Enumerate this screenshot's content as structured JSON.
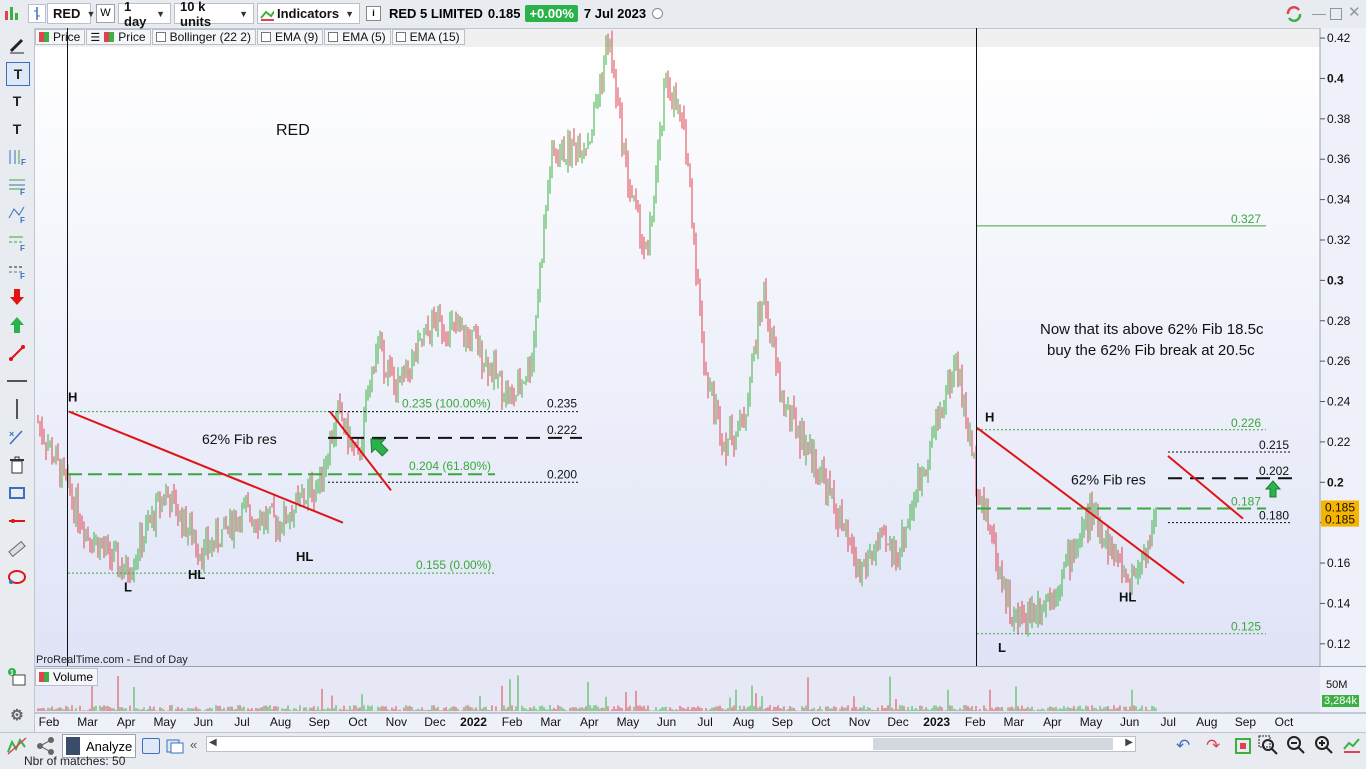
{
  "toolbar": {
    "ticker": "RED",
    "timeframe": "1 day",
    "units": "10 k units",
    "indicators_label": "Indicators",
    "instrument_name": "RED 5 LIMITED",
    "last_price": "0.185",
    "change": "+0.00%",
    "date": "7 Jul 2023"
  },
  "legend": {
    "items": [
      "Price",
      "Price",
      "Bollinger (22 2)",
      "EMA (9)",
      "EMA (5)",
      "EMA (15)"
    ]
  },
  "volume_panel": {
    "label": "Volume",
    "scale_top": "50M",
    "scale_value": "3,284k"
  },
  "status": {
    "analyze_label": "Analyze",
    "matches_text": "Nbr of matches: 50"
  },
  "colors": {
    "up": "#3cb043",
    "down": "#e0434f",
    "trendline": "#e01414",
    "fib": "#3aa83a",
    "accent": "#2bb34b"
  },
  "chart_data": {
    "type": "candlestick",
    "watermark": "ProRealTime.com - End of Day",
    "title": "RED",
    "y_axis": {
      "min": 0.11,
      "max": 0.424,
      "ticks": [
        "0.42",
        "0.4",
        "0.38",
        "0.36",
        "0.34",
        "0.32",
        "0.3",
        "0.28",
        "0.26",
        "0.24",
        "0.22",
        "0.2",
        "0.18",
        "0.16",
        "0.14",
        "0.12"
      ],
      "price_badges": [
        "0.185",
        "0.185"
      ]
    },
    "x_axis": {
      "labels": [
        "Feb",
        "Mar",
        "Apr",
        "May",
        "Jun",
        "Jul",
        "Aug",
        "Sep",
        "Oct",
        "Nov",
        "Dec",
        "2022",
        "Feb",
        "Mar",
        "Apr",
        "May",
        "Jun",
        "Jul",
        "Aug",
        "Sep",
        "Oct",
        "Nov",
        "Dec",
        "2023",
        "Feb",
        "Mar",
        "Apr",
        "May",
        "Jun",
        "Jul",
        "Aug",
        "Sep",
        "Oct"
      ],
      "bold_labels": [
        "2022",
        "2023"
      ]
    },
    "price_path": [
      [
        "Feb 2021",
        0.23
      ],
      [
        "Mar 2021",
        0.175
      ],
      [
        "Apr 2021",
        0.155
      ],
      [
        "May 2021",
        0.195
      ],
      [
        "Jun 2021",
        0.165
      ],
      [
        "Jul 2021",
        0.185
      ],
      [
        "Aug 2021",
        0.18
      ],
      [
        "Sep 2021",
        0.2
      ],
      [
        "Sep 2021",
        0.235
      ],
      [
        "Oct 2021",
        0.21
      ],
      [
        "Oct 2021",
        0.27
      ],
      [
        "Nov 2021",
        0.245
      ],
      [
        "Dec 2021",
        0.28
      ],
      [
        "Jan 2022",
        0.27
      ],
      [
        "Feb 2022",
        0.24
      ],
      [
        "Feb 2022",
        0.26
      ],
      [
        "Mar 2022",
        0.36
      ],
      [
        "Apr 2022",
        0.37
      ],
      [
        "Apr 2022",
        0.42
      ],
      [
        "May 2022",
        0.35
      ],
      [
        "May 2022",
        0.31
      ],
      [
        "Jun 2022",
        0.4
      ],
      [
        "Jun 2022",
        0.37
      ],
      [
        "Jul 2022",
        0.255
      ],
      [
        "Jul 2022",
        0.22
      ],
      [
        "Aug 2022",
        0.23
      ],
      [
        "Aug 2022",
        0.295
      ],
      [
        "Sep 2022",
        0.24
      ],
      [
        "Oct 2022",
        0.205
      ],
      [
        "Nov 2022",
        0.155
      ],
      [
        "Nov 2022",
        0.17
      ],
      [
        "Dec 2022",
        0.165
      ],
      [
        "Jan 2023",
        0.23
      ],
      [
        "Jan 2023",
        0.26
      ],
      [
        "Feb 2023",
        0.205
      ],
      [
        "Mar 2023",
        0.13
      ],
      [
        "Apr 2023",
        0.145
      ],
      [
        "May 2023",
        0.185
      ],
      [
        "Jun 2023",
        0.15
      ],
      [
        "Jun 2023",
        0.17
      ],
      [
        "Jul 2023",
        0.185
      ]
    ],
    "annotations": {
      "fib_2021": {
        "label_100": "0.235 (100.00%)",
        "label_62": "0.204 (61.80%)",
        "label_0": "0.155 (0.00%)",
        "level_a": "0.235",
        "level_b": "0.222",
        "level_c": "0.200",
        "note": "62% Fib res"
      },
      "fib_2023": {
        "level_327": "0.327",
        "level_226": "0.226",
        "level_215": "0.215",
        "level_202": "0.202",
        "level_187": "0.187",
        "level_180": "0.180",
        "level_125": "0.125",
        "note": "62% Fib res"
      },
      "swing_labels_2021": [
        "H",
        "L",
        "HL",
        "HL"
      ],
      "swing_labels_2023": [
        "H",
        "L",
        "HL"
      ],
      "comment_line1": "Now that its above 62% Fib 18.5c",
      "comment_line2": "buy the 62% Fib break at 20.5c"
    }
  }
}
